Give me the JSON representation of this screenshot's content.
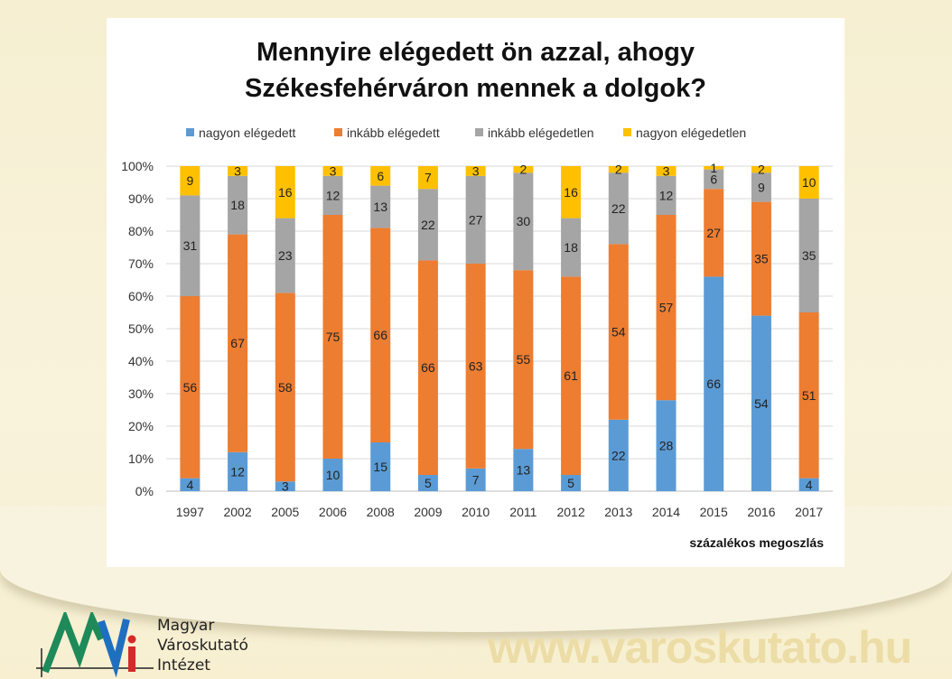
{
  "chart_data": {
    "type": "bar",
    "stacked": "percent",
    "title": "Mennyire elégedett ön azzal, ahogy Székesfehérváron mennek a dolgok?",
    "title_lines": [
      "Mennyire elégedett ön azzal, ahogy",
      "Székesfehérváron mennek a dolgok?"
    ],
    "categories": [
      "1997",
      "2002",
      "2005",
      "2006",
      "2008",
      "2009",
      "2010",
      "2011",
      "2012",
      "2013",
      "2014",
      "2015",
      "2016",
      "2017"
    ],
    "series": [
      {
        "name": "nagyon elégedett",
        "color": "#5b9bd5",
        "values": [
          4,
          12,
          3,
          10,
          15,
          5,
          7,
          13,
          5,
          22,
          28,
          66,
          54,
          4
        ]
      },
      {
        "name": "inkább elégedett",
        "color": "#ed7d31",
        "values": [
          56,
          67,
          58,
          75,
          66,
          66,
          63,
          55,
          61,
          54,
          57,
          27,
          35,
          51
        ]
      },
      {
        "name": "inkább elégedetlen",
        "color": "#a5a5a5",
        "values": [
          31,
          18,
          23,
          12,
          13,
          22,
          27,
          30,
          18,
          22,
          12,
          6,
          9,
          35
        ]
      },
      {
        "name": "nagyon elégedetlen",
        "color": "#ffc000",
        "values": [
          9,
          3,
          16,
          3,
          6,
          7,
          3,
          2,
          16,
          2,
          3,
          1,
          2,
          10
        ]
      }
    ],
    "yticks": [
      "0%",
      "10%",
      "20%",
      "30%",
      "40%",
      "50%",
      "60%",
      "70%",
      "80%",
      "90%",
      "100%"
    ],
    "ylim": [
      0,
      100
    ],
    "xlabel": "",
    "ylabel": "",
    "legend": "top",
    "grid": true,
    "note": "százalékos megoszlás"
  },
  "footer": {
    "logo_lines": [
      "Magyar",
      "Városkutató",
      "Intézet"
    ],
    "website": "www.varoskutato.hu"
  }
}
